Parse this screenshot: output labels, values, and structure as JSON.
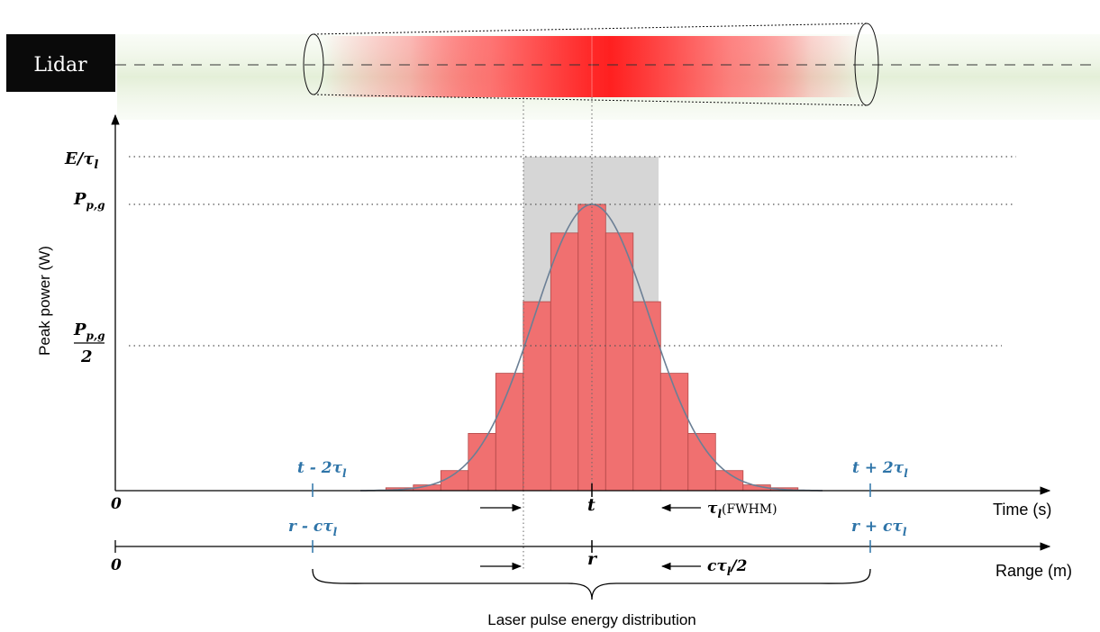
{
  "lidar_label": "Lidar",
  "y_axis_title": "Peak power (W)",
  "y_labels": {
    "e_over_tau": "E/τ",
    "e_over_tau_sub": "l",
    "p_pg": "P",
    "p_pg_sub": "p,g",
    "p_pg_half_num": "P",
    "p_pg_half_num_sub": "p,g",
    "p_pg_half_den": "2"
  },
  "time_axis": {
    "origin": "0",
    "title": "Time (s)",
    "center_label": "t",
    "left_label": "t - 2τ",
    "left_label_sub": "l",
    "right_label": "t + 2τ",
    "right_label_sub": "l",
    "width_label": "τ",
    "width_label_sub": "l",
    "width_suffix": "(FWHM)"
  },
  "range_axis": {
    "origin": "0",
    "title": "Range (m)",
    "center_label": "r",
    "left_label": "r - cτ",
    "left_label_sub": "l",
    "right_label": "r + cτ",
    "right_label_sub": "l",
    "width_label": "cτ",
    "width_label_sub": "l",
    "width_suffix": "/2"
  },
  "brace_caption": "Laser pulse energy distribution",
  "colors": {
    "bar_fill": "#f07070",
    "bar_stroke": "#b24848",
    "gray_box": "#d6d6d6",
    "curve": "#6b7f95",
    "beam_glow": "#eef5e6",
    "pulse_red": "#ff2020",
    "label_blue": "#2e74a8"
  },
  "histogram_relative_heights": [
    0.01,
    0.02,
    0.07,
    0.2,
    0.41,
    0.66,
    0.9,
    1.0,
    0.9,
    0.66,
    0.41,
    0.2,
    0.07,
    0.02,
    0.01
  ]
}
